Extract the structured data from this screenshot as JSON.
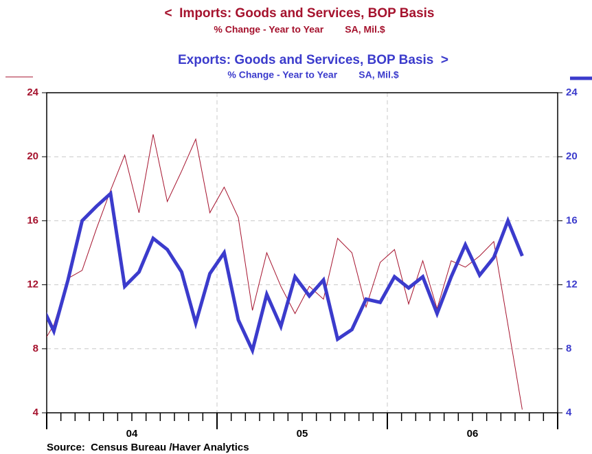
{
  "chart_data": {
    "type": "line",
    "source": "Source:  Census Bureau /Haver Analytics",
    "x": [
      2003.958,
      2004.042,
      2004.125,
      2004.208,
      2004.292,
      2004.375,
      2004.458,
      2004.542,
      2004.625,
      2004.708,
      2004.792,
      2004.875,
      2004.958,
      2005.042,
      2005.125,
      2005.208,
      2005.292,
      2005.375,
      2005.458,
      2005.542,
      2005.625,
      2005.708,
      2005.792,
      2005.875,
      2005.958,
      2006.042,
      2006.125,
      2006.208,
      2006.292,
      2006.375,
      2006.458,
      2006.542,
      2006.625,
      2006.708,
      2006.792
    ],
    "series": [
      {
        "name": "<  Imports: Goods and Services, BOP Basis",
        "subtitle": "% Change - Year to Year        SA, Mil.$",
        "color": "#a5122d",
        "width": 1,
        "axis": "y",
        "values": [
          8.0,
          9.5,
          12.4,
          12.9,
          15.5,
          17.9,
          20.1,
          16.5,
          21.4,
          17.2,
          19.1,
          21.1,
          16.5,
          18.1,
          16.2,
          10.4,
          14.0,
          11.9,
          10.2,
          11.9,
          11.1,
          14.9,
          14.0,
          10.6,
          13.4,
          14.2,
          10.8,
          13.5,
          10.5,
          13.5,
          13.1,
          13.8,
          14.7,
          9.5,
          4.2
        ]
      },
      {
        "name": "Exports: Goods and Services, BOP Basis  >",
        "subtitle": "% Change - Year to Year        SA, Mil.$",
        "color": "#3b3bcc",
        "width": 5,
        "axis": "y2",
        "values": [
          11.0,
          9.1,
          12.3,
          16.0,
          16.9,
          17.7,
          11.9,
          12.8,
          14.9,
          14.2,
          12.8,
          9.6,
          12.7,
          14.0,
          9.8,
          7.9,
          11.4,
          9.4,
          12.5,
          11.3,
          12.3,
          8.6,
          9.2,
          11.1,
          10.9,
          12.5,
          11.8,
          12.5,
          10.2,
          12.5,
          14.5,
          12.6,
          13.7,
          16.0,
          13.8
        ]
      }
    ],
    "xlim": [
      2004,
      2007
    ],
    "xticks": [
      {
        "value": 2004.5,
        "label": "04"
      },
      {
        "value": 2005.5,
        "label": "05"
      },
      {
        "value": 2006.5,
        "label": "06"
      }
    ],
    "ylim": [
      4,
      24
    ],
    "yticks": [
      4,
      8,
      12,
      16,
      20,
      24
    ],
    "y2lim": [
      4,
      24
    ],
    "y2ticks": [
      4,
      8,
      12,
      16,
      20,
      24
    ],
    "grid": true
  }
}
